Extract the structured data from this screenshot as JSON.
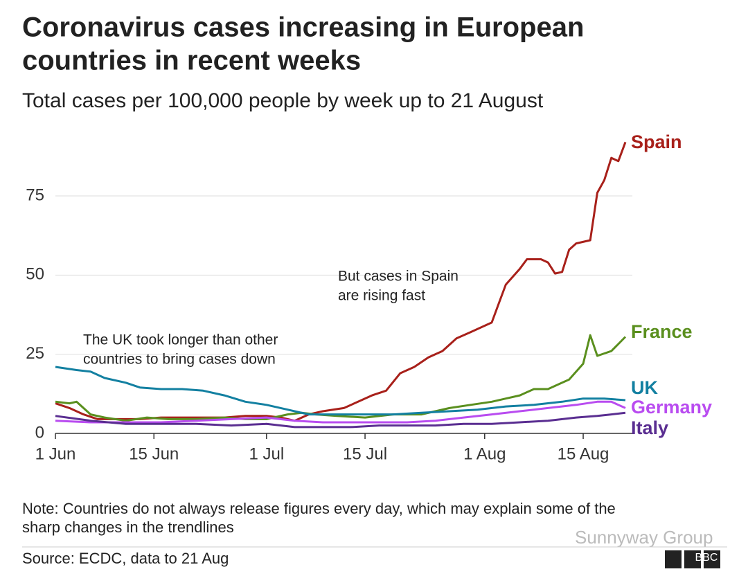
{
  "chart_data": {
    "type": "line",
    "title": [
      "Coronavirus cases increasing in European",
      "countries in recent weeks"
    ],
    "subtitle": "Total cases per 100,000 people by week up to 21 August",
    "xlim": [
      0,
      81
    ],
    "xticks": [
      {
        "value": 0,
        "label": "1 Jun"
      },
      {
        "value": 14,
        "label": "15 Jun"
      },
      {
        "value": 30,
        "label": "1 Jul"
      },
      {
        "value": 44,
        "label": "15 Jul"
      },
      {
        "value": 61,
        "label": "1 Aug"
      },
      {
        "value": 75,
        "label": "15 Aug"
      }
    ],
    "ylim": [
      0,
      95
    ],
    "yticks": [
      0,
      25,
      50,
      75
    ],
    "grid": true,
    "series": [
      {
        "name": "Spain",
        "color": "#a8201a",
        "x": [
          0,
          2,
          4,
          6,
          9,
          12,
          15,
          18,
          21,
          24,
          27,
          30,
          32,
          34,
          36,
          38,
          41,
          43,
          45,
          47,
          49,
          51,
          53,
          55,
          57,
          59,
          61,
          62,
          63,
          64,
          66,
          67,
          69,
          70,
          71,
          72,
          73,
          74,
          76,
          77,
          78,
          79,
          80,
          81
        ],
        "values": [
          9.5,
          8,
          6,
          4.5,
          4.5,
          4.5,
          5,
          5,
          5,
          5,
          5.5,
          5.5,
          5,
          4,
          6,
          7,
          8,
          10,
          12,
          13.5,
          19,
          21,
          24,
          26,
          30,
          32,
          34,
          35,
          41,
          47,
          52,
          55,
          55,
          54,
          50.5,
          51,
          58,
          60,
          61,
          76,
          80,
          87,
          86,
          92
        ]
      },
      {
        "name": "France",
        "color": "#5a8f1e",
        "x": [
          0,
          2,
          3,
          5,
          7,
          10,
          13,
          16,
          20,
          24,
          27,
          30,
          33,
          35,
          37,
          40,
          44,
          48,
          52,
          56,
          59,
          62,
          64,
          66,
          68,
          70,
          72,
          73,
          75,
          76,
          77,
          79,
          81
        ],
        "values": [
          10,
          9.5,
          10,
          6,
          5,
          4,
          5,
          4.5,
          4.5,
          5,
          4.5,
          4.5,
          6,
          6.5,
          6,
          5.5,
          5,
          6,
          6,
          8,
          9,
          10,
          11,
          12,
          14,
          14,
          16,
          17,
          22,
          31,
          24.5,
          26,
          30.5
        ]
      },
      {
        "name": "UK",
        "color": "#1380a1",
        "x": [
          0,
          3,
          5,
          7,
          10,
          12,
          15,
          18,
          21,
          24,
          27,
          30,
          33,
          36,
          40,
          44,
          48,
          52,
          56,
          60,
          64,
          68,
          72,
          75,
          78,
          81
        ],
        "values": [
          21,
          20,
          19.5,
          17.5,
          16,
          14.5,
          14,
          14,
          13.5,
          12,
          10,
          9,
          7.5,
          6,
          6,
          6,
          6,
          6.5,
          7,
          7.5,
          8.5,
          9,
          10,
          11,
          11,
          10.5
        ]
      },
      {
        "name": "Germany",
        "color": "#b94cf0",
        "x": [
          0,
          5,
          10,
          15,
          20,
          25,
          30,
          34,
          38,
          42,
          46,
          50,
          54,
          58,
          62,
          66,
          70,
          74,
          77,
          79,
          81
        ],
        "values": [
          4,
          3.5,
          3.5,
          3.5,
          4,
          4.5,
          5,
          4,
          3.5,
          3.5,
          3.5,
          3.5,
          4,
          5,
          6,
          7,
          8,
          9,
          10,
          10,
          8
        ]
      },
      {
        "name": "Italy",
        "color": "#5a2e91",
        "x": [
          0,
          5,
          10,
          15,
          20,
          25,
          30,
          34,
          38,
          42,
          46,
          50,
          54,
          58,
          62,
          66,
          70,
          74,
          77,
          79,
          81
        ],
        "values": [
          5.5,
          4,
          3,
          3,
          3,
          2.5,
          3,
          2,
          2,
          2,
          2.5,
          2.5,
          2.5,
          3,
          3,
          3.5,
          4,
          5,
          5.5,
          6,
          6.5
        ]
      }
    ],
    "annotations": [
      {
        "text": [
          "But cases in Spain",
          "are rising fast"
        ]
      },
      {
        "text": [
          "The UK took longer than other",
          "countries to bring cases down"
        ]
      }
    ],
    "note": [
      "Note: Countries do not always release figures every day, which may explain some of the",
      "sharp changes in the trendlines"
    ],
    "source": "Source: ECDC, data to 21 Aug",
    "watermark": "Sunnyway Group",
    "logo": "BBC"
  }
}
